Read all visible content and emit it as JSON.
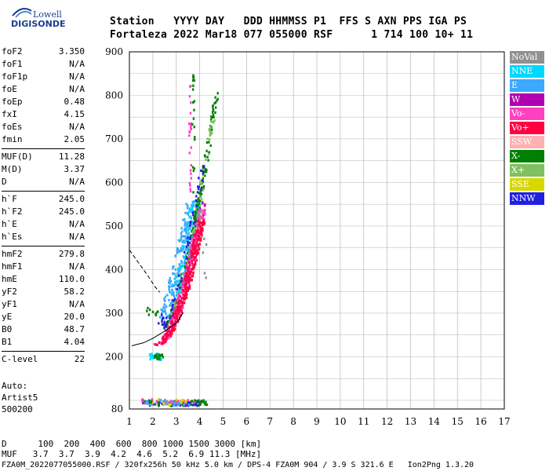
{
  "logo": {
    "line1": "Lowell",
    "line2": "DIGISONDE"
  },
  "header": {
    "line1": "Station   YYYY DAY   DDD HHMMSS P1  FFS S AXN PPS IGA PS",
    "line2": "Fortaleza 2022 Mar18 077 055000 RSF      1 714 100 10+ 11"
  },
  "params": [
    [
      {
        "label": "foF2",
        "value": "3.350"
      },
      {
        "label": "foF1",
        "value": "N/A"
      },
      {
        "label": "foF1p",
        "value": "N/A"
      },
      {
        "label": "foE",
        "value": "N/A"
      },
      {
        "label": "foEp",
        "value": "0.48"
      },
      {
        "label": "fxI",
        "value": "4.15"
      },
      {
        "label": "foEs",
        "value": "N/A"
      },
      {
        "label": "fmin",
        "value": "2.05"
      }
    ],
    [
      {
        "label": "MUF(D)",
        "value": "11.28"
      },
      {
        "label": "M(D)",
        "value": "3.37"
      },
      {
        "label": "D",
        "value": "N/A"
      }
    ],
    [
      {
        "label": "h`F",
        "value": "245.0"
      },
      {
        "label": "h`F2",
        "value": "245.0"
      },
      {
        "label": "h`E",
        "value": "N/A"
      },
      {
        "label": "h`Es",
        "value": "N/A"
      }
    ],
    [
      {
        "label": "hmF2",
        "value": "279.8"
      },
      {
        "label": "hmF1",
        "value": "N/A"
      },
      {
        "label": "hmE",
        "value": "110.0"
      },
      {
        "label": "yF2",
        "value": "58.2"
      },
      {
        "label": "yF1",
        "value": "N/A"
      },
      {
        "label": "yE",
        "value": "20.0"
      },
      {
        "label": "B0",
        "value": "48.7"
      },
      {
        "label": "B1",
        "value": "4.04"
      }
    ],
    [
      {
        "label": "C-level",
        "value": "22"
      }
    ]
  ],
  "auto": {
    "line1": "Auto:",
    "line2": "Artist5",
    "line3": "500200"
  },
  "legend": [
    {
      "label": "NoVal",
      "color": "#909090"
    },
    {
      "label": "NNE",
      "color": "#00d8ff"
    },
    {
      "label": "E",
      "color": "#3ca8ff"
    },
    {
      "label": "W",
      "color": "#b000b0"
    },
    {
      "label": "Vo-",
      "color": "#ff40c0"
    },
    {
      "label": "Vo+",
      "color": "#ff0040"
    },
    {
      "label": "SSW",
      "color": "#ffb0b0"
    },
    {
      "label": "X-",
      "color": "#008000"
    },
    {
      "label": "X+",
      "color": "#80c060"
    },
    {
      "label": "SSE",
      "color": "#d8d800"
    },
    {
      "label": "NNW",
      "color": "#2020e0"
    }
  ],
  "bottom": {
    "row1": "D      100  200  400  600  800 1000 1500 3000 [km]",
    "row2": "MUF   3.7  3.7  3.9  4.2  4.6  5.2  6.9 11.3 [MHz]",
    "footer": "FZA0M_2022077055000.RSF / 320fx256h 50 kHz 5.0 km / DPS-4 FZA0M 904 / 3.9 S 321.6 E   Ion2Png 1.3.20"
  },
  "chart_data": {
    "type": "scatter",
    "xlim": [
      1,
      17
    ],
    "ylim": [
      80,
      900
    ],
    "xticks": [
      "1",
      "2",
      "3",
      "4",
      "5",
      "6",
      "7",
      "8",
      "9",
      "10",
      "11",
      "12",
      "13",
      "14",
      "15",
      "16",
      "17"
    ],
    "yticks": [
      "80",
      "200",
      "300",
      "400",
      "500",
      "600",
      "700",
      "800",
      "900"
    ],
    "grid": true,
    "trace_profile": {
      "x": [
        1.1,
        1.6,
        2.0,
        2.3,
        2.6,
        2.8,
        3.0,
        3.15,
        3.3
      ],
      "y": [
        225,
        232,
        242,
        252,
        262,
        270,
        278,
        288,
        302
      ]
    },
    "trace_upper": {
      "x": [
        1.0,
        1.4,
        1.8,
        2.1,
        2.3
      ],
      "y": [
        445,
        415,
        385,
        360,
        348
      ]
    },
    "clusters": [
      {
        "name": "F-trace core",
        "color": "#ff0040"
      },
      {
        "name": "F-trace high",
        "color": "#ff40c0"
      },
      {
        "name": "spread",
        "color": "#3ca8ff"
      },
      {
        "name": "spread-2",
        "color": "#00d8ff"
      },
      {
        "name": "X",
        "color": "#008000"
      },
      {
        "name": "X+",
        "color": "#80c060"
      },
      {
        "name": "W",
        "color": "#b000b0"
      },
      {
        "name": "NNW",
        "color": "#2020e0"
      },
      {
        "name": "SSE",
        "color": "#d8d800"
      },
      {
        "name": "NoVal",
        "color": "#909090"
      }
    ]
  }
}
